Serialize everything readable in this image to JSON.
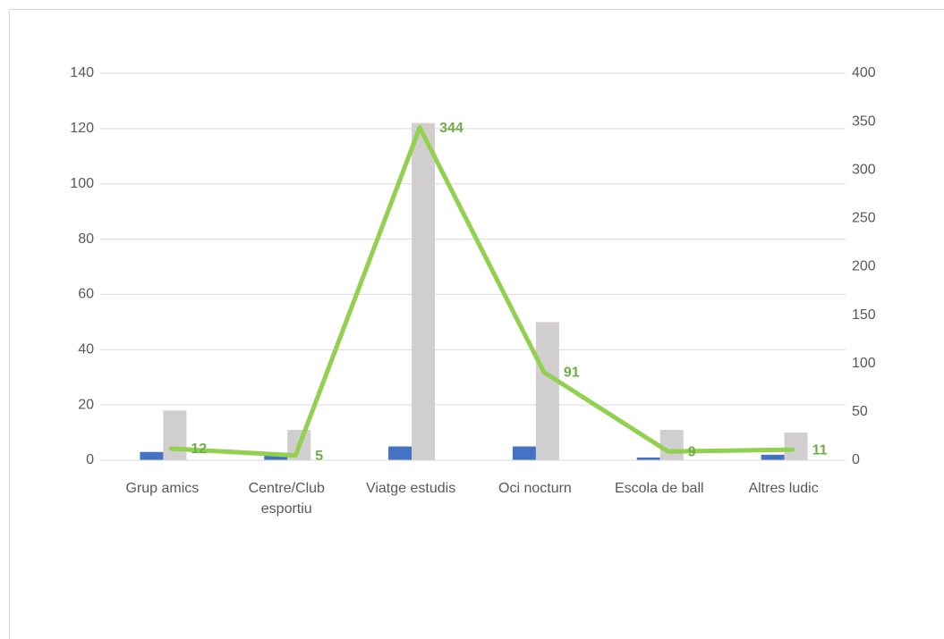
{
  "chart_data": {
    "type": "bar_line",
    "categories": [
      "Grup amics",
      "Centre/Club esportiu",
      "Viatge estudis",
      "Oci nocturn",
      "Escola de ball",
      "Altres ludic"
    ],
    "series": [
      {
        "type": "bar",
        "color": "#4472c4",
        "values": [
          3,
          2,
          5,
          5,
          1,
          2
        ]
      },
      {
        "type": "bar",
        "color": "#d0cece",
        "values": [
          18,
          11,
          122,
          50,
          11,
          10
        ]
      },
      {
        "type": "line",
        "axis": "y2",
        "color": "#92d050",
        "label_color": "#70ad47",
        "values": [
          12,
          5,
          344,
          91,
          9,
          11
        ]
      }
    ],
    "ylim": [
      0,
      140
    ],
    "yticks": [
      0,
      20,
      40,
      60,
      80,
      100,
      120,
      140
    ],
    "y2lim": [
      0,
      400
    ],
    "y2ticks": [
      0,
      50,
      100,
      150,
      200,
      250,
      300,
      350,
      400
    ],
    "grid": true
  }
}
